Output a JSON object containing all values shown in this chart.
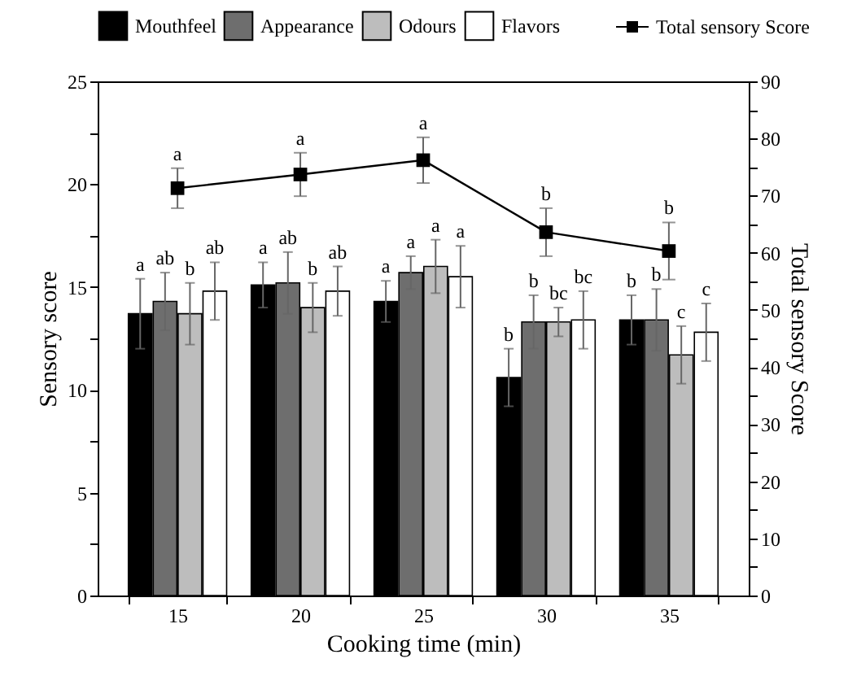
{
  "chart_data": {
    "type": "bar",
    "categories": [
      "15",
      "20",
      "25",
      "30",
      "35"
    ],
    "xlabel": "Cooking time (min)",
    "ylabel": "Sensory score",
    "y2label": "Total sensory Score",
    "ylim": [
      0,
      25
    ],
    "yticks": [
      0,
      {
        "value": 2.5,
        "label": null
      },
      5,
      {
        "value": 7.5,
        "label": null
      },
      10,
      {
        "value": 12.5,
        "label": null
      },
      15,
      {
        "value": 17.5,
        "label": null
      },
      20,
      {
        "value": 22.5,
        "label": null
      },
      25
    ],
    "y2lim": [
      0,
      90
    ],
    "y2ticks": [
      0,
      {
        "value": 5,
        "label": null
      },
      10,
      {
        "value": 15,
        "label": null
      },
      20,
      {
        "value": 25,
        "label": null
      },
      30,
      {
        "value": 35,
        "label": null
      },
      40,
      {
        "value": 45,
        "label": null
      },
      50,
      {
        "value": 55,
        "label": null
      },
      60,
      {
        "value": 65,
        "label": null
      },
      70,
      {
        "value": 75,
        "label": null
      },
      80,
      {
        "value": 85,
        "label": null
      },
      90
    ],
    "legend": "top",
    "grid": false,
    "series": [
      {
        "name": "Mouthfeel",
        "color": "#000000",
        "values": [
          13.7,
          15.1,
          14.3,
          10.6,
          13.4
        ],
        "errors": [
          1.7,
          1.1,
          1.0,
          1.4,
          1.2
        ],
        "value_labels": [
          "a",
          "a",
          "a",
          "b",
          "b"
        ]
      },
      {
        "name": "Appearance",
        "color": "#6e6e6e",
        "values": [
          14.3,
          15.2,
          15.7,
          13.3,
          13.4
        ],
        "errors": [
          1.4,
          1.5,
          0.8,
          1.3,
          1.5
        ],
        "value_labels": [
          "ab",
          "ab",
          "a",
          "b",
          "b"
        ]
      },
      {
        "name": "Odours",
        "color": "#bdbdbd",
        "values": [
          13.7,
          14.0,
          16.0,
          13.3,
          11.7
        ],
        "errors": [
          1.5,
          1.2,
          1.3,
          0.7,
          1.4
        ],
        "value_labels": [
          "b",
          "b",
          "a",
          "bc",
          "c"
        ]
      },
      {
        "name": "Flavors",
        "color": "#ffffff",
        "values": [
          14.8,
          14.8,
          15.5,
          13.4,
          12.8
        ],
        "errors": [
          1.4,
          1.2,
          1.5,
          1.4,
          1.4
        ],
        "value_labels": [
          "ab",
          "ab",
          "a",
          "bc",
          "c"
        ]
      },
      {
        "name": "Total sensory Score",
        "type": "line",
        "axis": "y2",
        "marker": "square",
        "line_style": "solid",
        "color": "#000000",
        "values": [
          71.3,
          73.7,
          76.2,
          63.6,
          60.3
        ],
        "errors": [
          3.5,
          3.8,
          4.0,
          4.2,
          5.0
        ],
        "value_labels": [
          "a",
          "a",
          "a",
          "b",
          "b"
        ]
      }
    ]
  }
}
